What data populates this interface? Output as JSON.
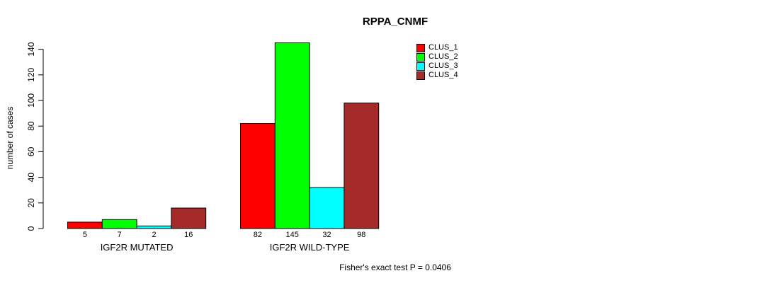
{
  "chart_data": {
    "type": "bar",
    "title": "RPPA_CNMF",
    "ylabel": "number of cases",
    "xlabel": "",
    "ylim": [
      0,
      140
    ],
    "yticks": [
      0,
      20,
      40,
      60,
      80,
      100,
      120,
      140
    ],
    "grid": false,
    "legend_position": "top-right",
    "categories": [
      "IGF2R MUTATED",
      "IGF2R WILD-TYPE"
    ],
    "series": [
      {
        "name": "CLUS_1",
        "color": "#FF0000",
        "values": [
          5,
          82
        ]
      },
      {
        "name": "CLUS_2",
        "color": "#00FF00",
        "values": [
          7,
          145
        ]
      },
      {
        "name": "CLUS_3",
        "color": "#00FFFF",
        "values": [
          2,
          32
        ]
      },
      {
        "name": "CLUS_4",
        "color": "#A52A2A",
        "values": [
          16,
          98
        ]
      }
    ],
    "bar_value_labels": [
      [
        5,
        7,
        2,
        16
      ],
      [
        82,
        145,
        32,
        98
      ]
    ],
    "annotation": "Fisher's exact test P = 0.0406"
  },
  "colors": {
    "axis": "#000000",
    "bar_border": "#000000",
    "background": "#FFFFFF"
  }
}
